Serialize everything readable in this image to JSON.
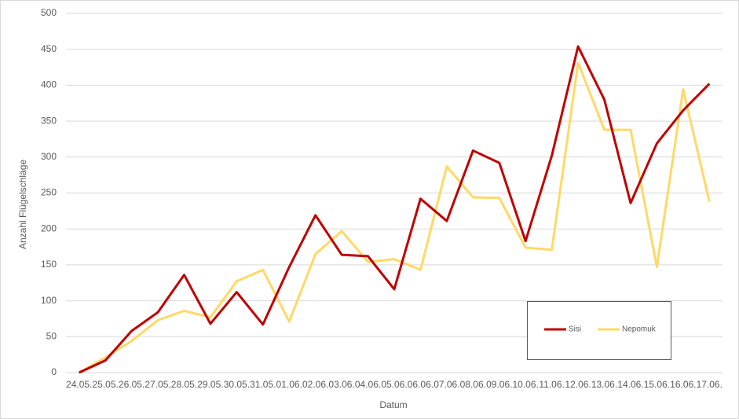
{
  "chart_data": {
    "type": "line",
    "x_label": "Datum",
    "y_label": "Anzahl Flügelschläge",
    "categories": [
      "24.05.",
      "25.05.",
      "26.05.",
      "27.05.",
      "28.05.",
      "29.05.",
      "30.05.",
      "31.05.",
      "01.06.",
      "02.06.",
      "03.06.",
      "04.06.",
      "05.06.",
      "06.06.",
      "07.06.",
      "08.06.",
      "09.06.",
      "10.06.",
      "11.06.",
      "12.06.",
      "13.06.",
      "14.06.",
      "15.06.",
      "16.06.",
      "17.06."
    ],
    "series": [
      {
        "name": "Sisi",
        "color": "#c00000",
        "values": [
          0,
          17,
          58,
          84,
          136,
          68,
          112,
          67,
          147,
          219,
          164,
          162,
          116,
          242,
          211,
          309,
          292,
          183,
          302,
          454,
          380,
          236,
          319,
          365,
          402
        ]
      },
      {
        "name": "Nepomuk",
        "color": "#ffd966",
        "values": [
          0,
          21,
          44,
          73,
          86,
          77,
          127,
          143,
          71,
          165,
          197,
          154,
          158,
          143,
          287,
          244,
          243,
          174,
          171,
          431,
          338,
          338,
          147,
          394,
          238
        ]
      }
    ],
    "ylim": [
      0,
      500
    ],
    "yticks": [
      0,
      50,
      100,
      150,
      200,
      250,
      300,
      350,
      400,
      450,
      500
    ],
    "grid": true,
    "legend": "lower right"
  }
}
